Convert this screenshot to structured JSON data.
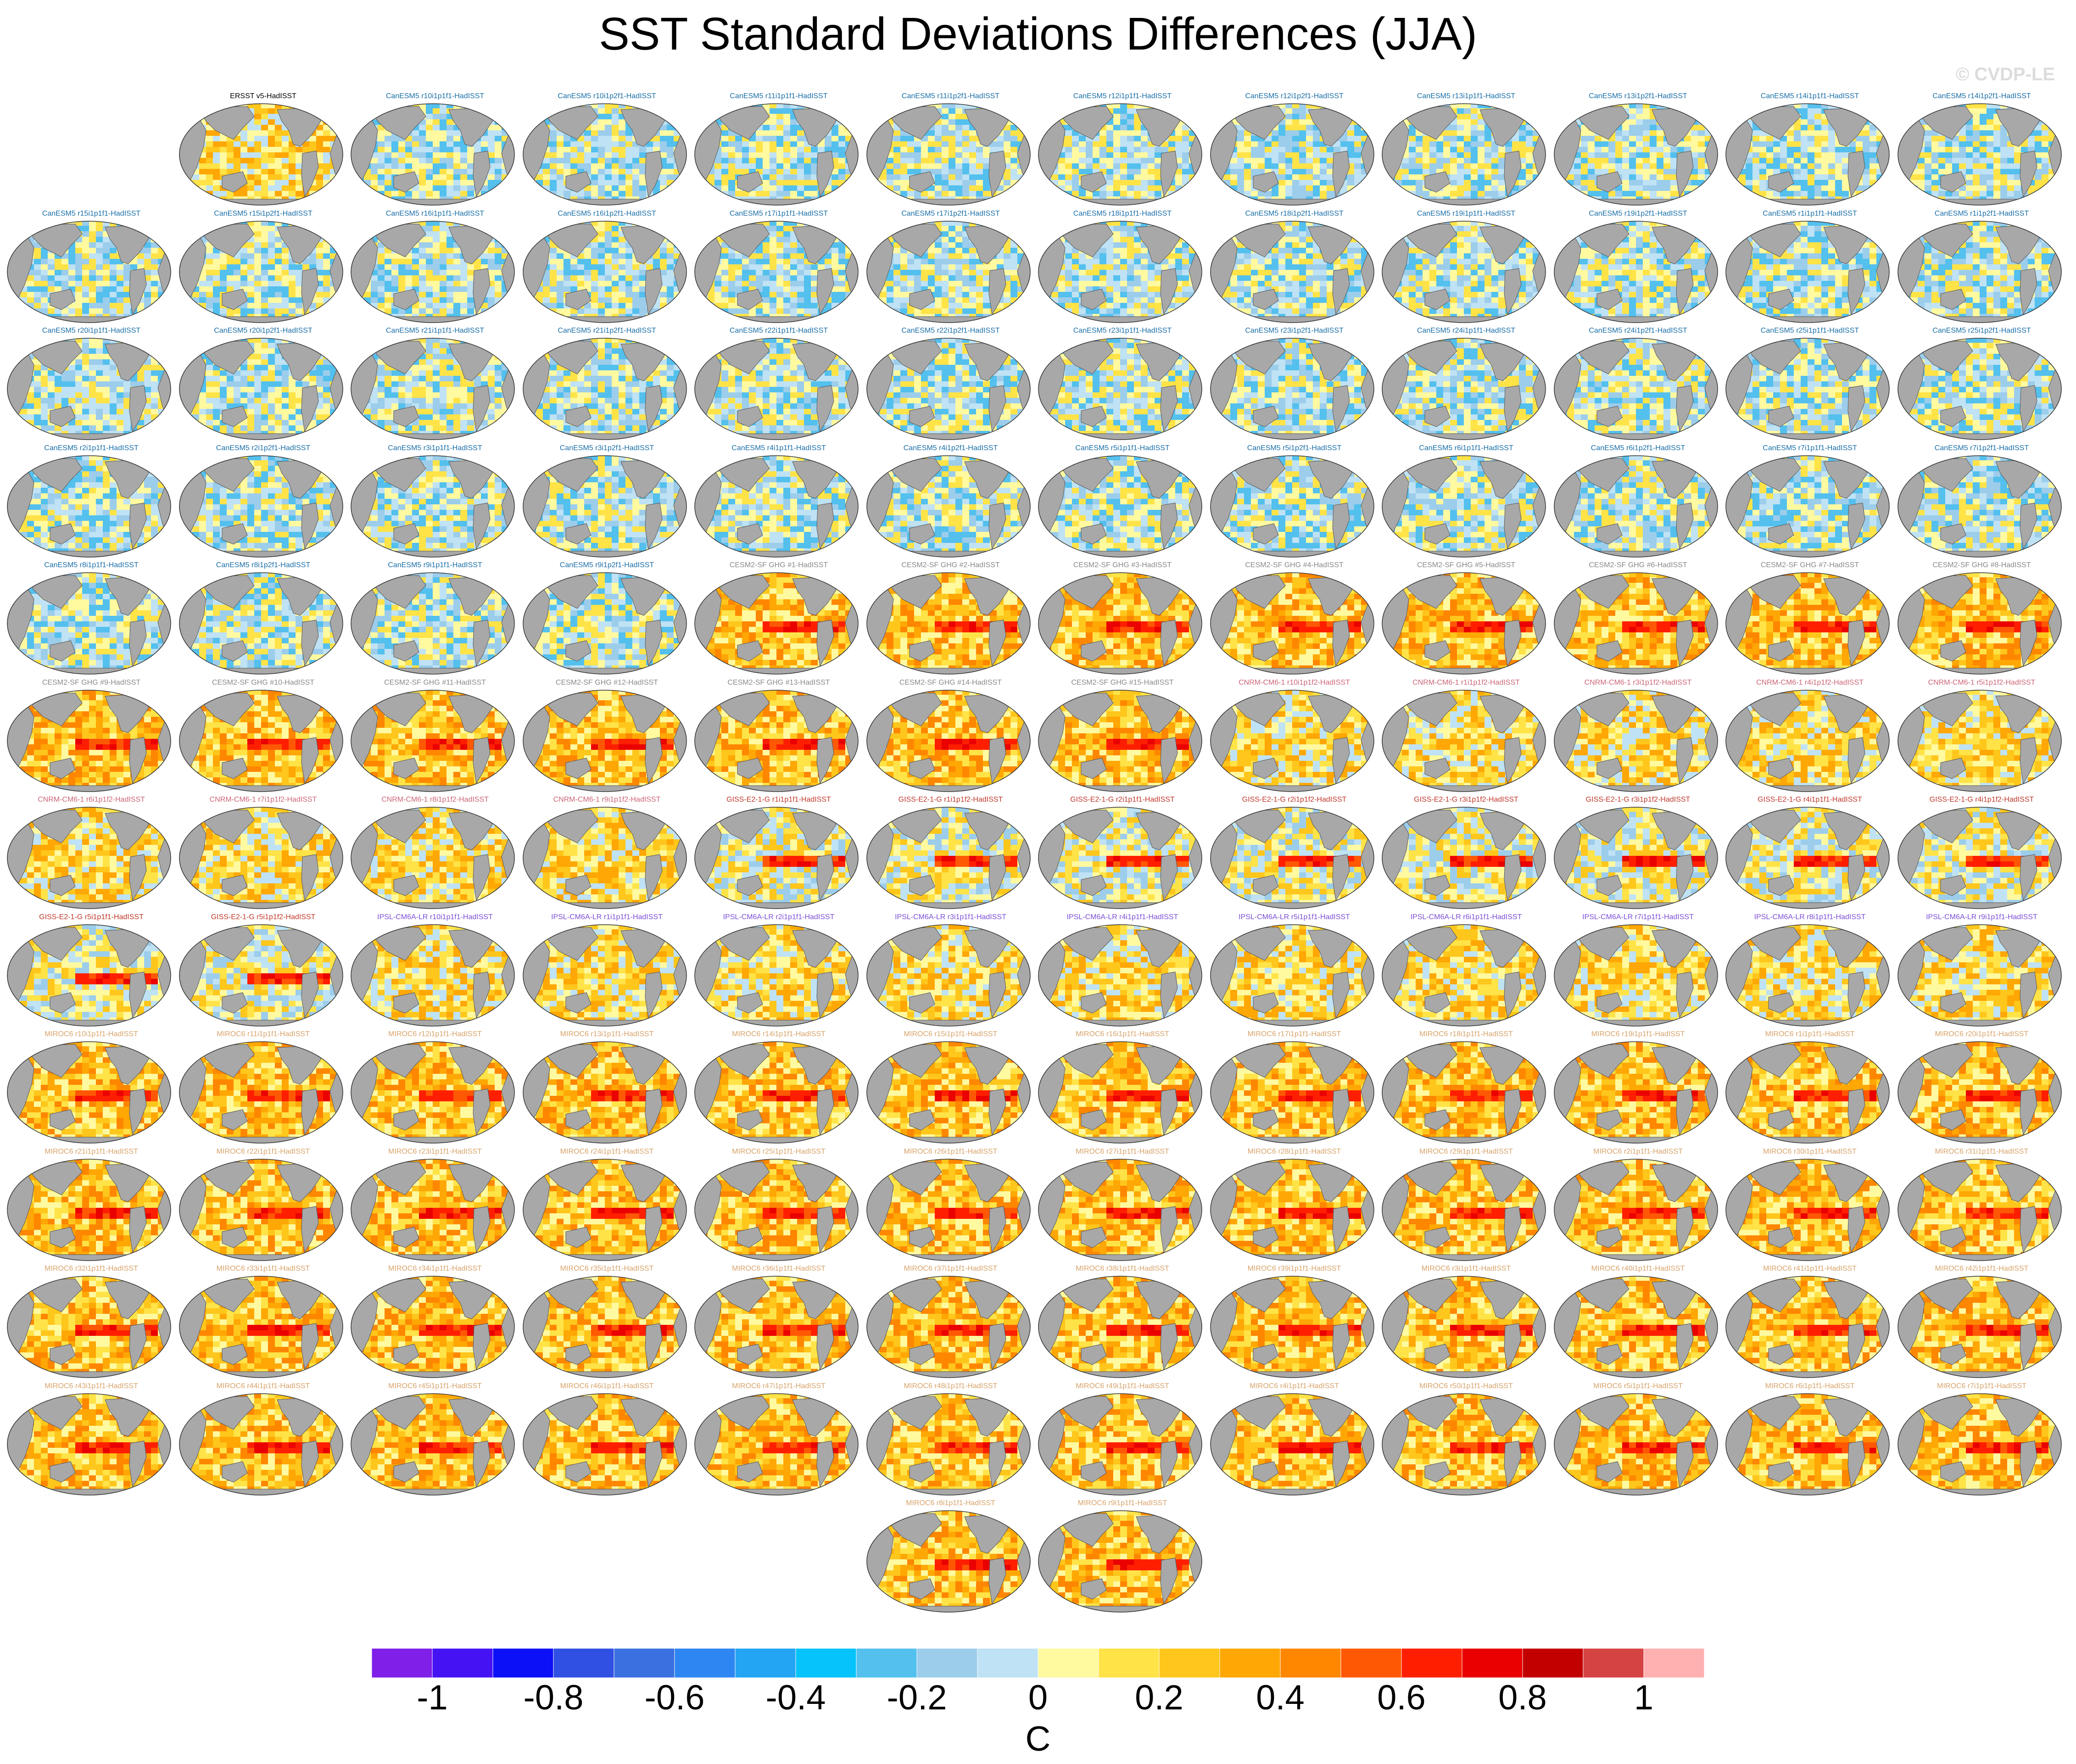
{
  "title": "SST Standard Deviations Differences (JJA)",
  "watermark": "© CVDP-LE",
  "colorbar": {
    "units": "C",
    "tick_labels": [
      "-1",
      "-0.8",
      "-0.6",
      "-0.4",
      "-0.2",
      "0",
      "0.2",
      "0.4",
      "0.6",
      "0.8",
      "1"
    ],
    "colors": [
      "#7f1fe8",
      "#4512f4",
      "#0c10f6",
      "#2f50e2",
      "#3b70e0",
      "#2d86f2",
      "#23a5f4",
      "#07c3fb",
      "#53c0ee",
      "#9ccdeb",
      "#bfe2f4",
      "#fff9a0",
      "#ffe347",
      "#ffc61c",
      "#ffa704",
      "#ff8700",
      "#ff5804",
      "#ff1f00",
      "#ea0000",
      "#c30000",
      "#d64343",
      "#ffb0b0"
    ]
  },
  "panels": [
    {
      "label": "ERSST v5-HadISST",
      "group": "obs"
    },
    {
      "label": "CanESM5 r10i1p1f1-HadISST",
      "group": "CanESM5"
    },
    {
      "label": "CanESM5 r10i1p2f1-HadISST",
      "group": "CanESM5"
    },
    {
      "label": "CanESM5 r11i1p1f1-HadISST",
      "group": "CanESM5"
    },
    {
      "label": "CanESM5 r11i1p2f1-HadISST",
      "group": "CanESM5"
    },
    {
      "label": "CanESM5 r12i1p1f1-HadISST",
      "group": "CanESM5"
    },
    {
      "label": "CanESM5 r12i1p2f1-HadISST",
      "group": "CanESM5"
    },
    {
      "label": "CanESM5 r13i1p1f1-HadISST",
      "group": "CanESM5"
    },
    {
      "label": "CanESM5 r13i1p2f1-HadISST",
      "group": "CanESM5"
    },
    {
      "label": "CanESM5 r14i1p1f1-HadISST",
      "group": "CanESM5"
    },
    {
      "label": "CanESM5 r14i1p2f1-HadISST",
      "group": "CanESM5"
    },
    {
      "label": "CanESM5 r15i1p1f1-HadISST",
      "group": "CanESM5"
    },
    {
      "label": "CanESM5 r15i1p2f1-HadISST",
      "group": "CanESM5"
    },
    {
      "label": "CanESM5 r16i1p1f1-HadISST",
      "group": "CanESM5"
    },
    {
      "label": "CanESM5 r16i1p2f1-HadISST",
      "group": "CanESM5"
    },
    {
      "label": "CanESM5 r17i1p1f1-HadISST",
      "group": "CanESM5"
    },
    {
      "label": "CanESM5 r17i1p2f1-HadISST",
      "group": "CanESM5"
    },
    {
      "label": "CanESM5 r18i1p1f1-HadISST",
      "group": "CanESM5"
    },
    {
      "label": "CanESM5 r18i1p2f1-HadISST",
      "group": "CanESM5"
    },
    {
      "label": "CanESM5 r19i1p1f1-HadISST",
      "group": "CanESM5"
    },
    {
      "label": "CanESM5 r19i1p2f1-HadISST",
      "group": "CanESM5"
    },
    {
      "label": "CanESM5 r1i1p1f1-HadISST",
      "group": "CanESM5"
    },
    {
      "label": "CanESM5 r1i1p2f1-HadISST",
      "group": "CanESM5"
    },
    {
      "label": "CanESM5 r20i1p1f1-HadISST",
      "group": "CanESM5"
    },
    {
      "label": "CanESM5 r20i1p2f1-HadISST",
      "group": "CanESM5"
    },
    {
      "label": "CanESM5 r21i1p1f1-HadISST",
      "group": "CanESM5"
    },
    {
      "label": "CanESM5 r21i1p2f1-HadISST",
      "group": "CanESM5"
    },
    {
      "label": "CanESM5 r22i1p1f1-HadISST",
      "group": "CanESM5"
    },
    {
      "label": "CanESM5 r22i1p2f1-HadISST",
      "group": "CanESM5"
    },
    {
      "label": "CanESM5 r23i1p1f1-HadISST",
      "group": "CanESM5"
    },
    {
      "label": "CanESM5 r23i1p2f1-HadISST",
      "group": "CanESM5"
    },
    {
      "label": "CanESM5 r24i1p1f1-HadISST",
      "group": "CanESM5"
    },
    {
      "label": "CanESM5 r24i1p2f1-HadISST",
      "group": "CanESM5"
    },
    {
      "label": "CanESM5 r25i1p1f1-HadISST",
      "group": "CanESM5"
    },
    {
      "label": "CanESM5 r25i1p2f1-HadISST",
      "group": "CanESM5"
    },
    {
      "label": "CanESM5 r2i1p1f1-HadISST",
      "group": "CanESM5"
    },
    {
      "label": "CanESM5 r2i1p2f1-HadISST",
      "group": "CanESM5"
    },
    {
      "label": "CanESM5 r3i1p1f1-HadISST",
      "group": "CanESM5"
    },
    {
      "label": "CanESM5 r3i1p2f1-HadISST",
      "group": "CanESM5"
    },
    {
      "label": "CanESM5 r4i1p1f1-HadISST",
      "group": "CanESM5"
    },
    {
      "label": "CanESM5 r4i1p2f1-HadISST",
      "group": "CanESM5"
    },
    {
      "label": "CanESM5 r5i1p1f1-HadISST",
      "group": "CanESM5"
    },
    {
      "label": "CanESM5 r5i1p2f1-HadISST",
      "group": "CanESM5"
    },
    {
      "label": "CanESM5 r6i1p1f1-HadISST",
      "group": "CanESM5"
    },
    {
      "label": "CanESM5 r6i1p2f1-HadISST",
      "group": "CanESM5"
    },
    {
      "label": "CanESM5 r7i1p1f1-HadISST",
      "group": "CanESM5"
    },
    {
      "label": "CanESM5 r7i1p2f1-HadISST",
      "group": "CanESM5"
    },
    {
      "label": "CanESM5 r8i1p1f1-HadISST",
      "group": "CanESM5"
    },
    {
      "label": "CanESM5 r8i1p2f1-HadISST",
      "group": "CanESM5"
    },
    {
      "label": "CanESM5 r9i1p1f1-HadISST",
      "group": "CanESM5"
    },
    {
      "label": "CanESM5 r9i1p2f1-HadISST",
      "group": "CanESM5"
    },
    {
      "label": "CESM2-SF GHG #1-HadISST",
      "group": "CESM2"
    },
    {
      "label": "CESM2-SF GHG #2-HadISST",
      "group": "CESM2"
    },
    {
      "label": "CESM2-SF GHG #3-HadISST",
      "group": "CESM2"
    },
    {
      "label": "CESM2-SF GHG #4-HadISST",
      "group": "CESM2"
    },
    {
      "label": "CESM2-SF GHG #5-HadISST",
      "group": "CESM2"
    },
    {
      "label": "CESM2-SF GHG #6-HadISST",
      "group": "CESM2"
    },
    {
      "label": "CESM2-SF GHG #7-HadISST",
      "group": "CESM2"
    },
    {
      "label": "CESM2-SF GHG #8-HadISST",
      "group": "CESM2"
    },
    {
      "label": "CESM2-SF GHG #9-HadISST",
      "group": "CESM2"
    },
    {
      "label": "CESM2-SF GHG #10-HadISST",
      "group": "CESM2"
    },
    {
      "label": "CESM2-SF GHG #11-HadISST",
      "group": "CESM2"
    },
    {
      "label": "CESM2-SF GHG #12-HadISST",
      "group": "CESM2"
    },
    {
      "label": "CESM2-SF GHG #13-HadISST",
      "group": "CESM2"
    },
    {
      "label": "CESM2-SF GHG #14-HadISST",
      "group": "CESM2"
    },
    {
      "label": "CESM2-SF GHG #15-HadISST",
      "group": "CESM2"
    },
    {
      "label": "CNRM-CM6-1 r10i1p1f2-HadISST",
      "group": "CNRM"
    },
    {
      "label": "CNRM-CM6-1 r1i1p1f2-HadISST",
      "group": "CNRM"
    },
    {
      "label": "CNRM-CM6-1 r3i1p1f2-HadISST",
      "group": "CNRM"
    },
    {
      "label": "CNRM-CM6-1 r4i1p1f2-HadISST",
      "group": "CNRM"
    },
    {
      "label": "CNRM-CM6-1 r5i1p1f2-HadISST",
      "group": "CNRM"
    },
    {
      "label": "CNRM-CM6-1 r6i1p1f2-HadISST",
      "group": "CNRM"
    },
    {
      "label": "CNRM-CM6-1 r7i1p1f2-HadISST",
      "group": "CNRM"
    },
    {
      "label": "CNRM-CM6-1 r8i1p1f2-HadISST",
      "group": "CNRM"
    },
    {
      "label": "CNRM-CM6-1 r9i1p1f2-HadISST",
      "group": "CNRM"
    },
    {
      "label": "GISS-E2-1-G r1i1p1f1-HadISST",
      "group": "GISS"
    },
    {
      "label": "GISS-E2-1-G r1i1p1f2-HadISST",
      "group": "GISS"
    },
    {
      "label": "GISS-E2-1-G r2i1p1f1-HadISST",
      "group": "GISS"
    },
    {
      "label": "GISS-E2-1-G r2i1p1f2-HadISST",
      "group": "GISS"
    },
    {
      "label": "GISS-E2-1-G r3i1p1f2-HadISST",
      "group": "GISS"
    },
    {
      "label": "GISS-E2-1-G r3i1p1f2-HadISST",
      "group": "GISS"
    },
    {
      "label": "GISS-E2-1-G r4i1p1f1-HadISST",
      "group": "GISS"
    },
    {
      "label": "GISS-E2-1-G r4i1p1f2-HadISST",
      "group": "GISS"
    },
    {
      "label": "GISS-E2-1-G r5i1p1f1-HadISST",
      "group": "GISS"
    },
    {
      "label": "GISS-E2-1-G r5i1p1f2-HadISST",
      "group": "GISS"
    },
    {
      "label": "IPSL-CM6A-LR r10i1p1f1-HadISST",
      "group": "IPSL"
    },
    {
      "label": "IPSL-CM6A-LR r1i1p1f1-HadISST",
      "group": "IPSL"
    },
    {
      "label": "IPSL-CM6A-LR r2i1p1f1-HadISST",
      "group": "IPSL"
    },
    {
      "label": "IPSL-CM6A-LR r3i1p1f1-HadISST",
      "group": "IPSL"
    },
    {
      "label": "IPSL-CM6A-LR r4i1p1f1-HadISST",
      "group": "IPSL"
    },
    {
      "label": "IPSL-CM6A-LR r5i1p1f1-HadISST",
      "group": "IPSL"
    },
    {
      "label": "IPSL-CM6A-LR r6i1p1f1-HadISST",
      "group": "IPSL"
    },
    {
      "label": "IPSL-CM6A-LR r7i1p1f1-HadISST",
      "group": "IPSL"
    },
    {
      "label": "IPSL-CM6A-LR r8i1p1f1-HadISST",
      "group": "IPSL"
    },
    {
      "label": "IPSL-CM6A-LR r9i1p1f1-HadISST",
      "group": "IPSL"
    },
    {
      "label": "MIROC6 r10i1p1f1-HadISST",
      "group": "MIROC6"
    },
    {
      "label": "MIROC6 r11i1p1f1-HadISST",
      "group": "MIROC6"
    },
    {
      "label": "MIROC6 r12i1p1f1-HadISST",
      "group": "MIROC6"
    },
    {
      "label": "MIROC6 r13i1p1f1-HadISST",
      "group": "MIROC6"
    },
    {
      "label": "MIROC6 r14i1p1f1-HadISST",
      "group": "MIROC6"
    },
    {
      "label": "MIROC6 r15i1p1f1-HadISST",
      "group": "MIROC6"
    },
    {
      "label": "MIROC6 r16i1p1f1-HadISST",
      "group": "MIROC6"
    },
    {
      "label": "MIROC6 r17i1p1f1-HadISST",
      "group": "MIROC6"
    },
    {
      "label": "MIROC6 r18i1p1f1-HadISST",
      "group": "MIROC6"
    },
    {
      "label": "MIROC6 r19i1p1f1-HadISST",
      "group": "MIROC6"
    },
    {
      "label": "MIROC6 r1i1p1f1-HadISST",
      "group": "MIROC6"
    },
    {
      "label": "MIROC6 r20i1p1f1-HadISST",
      "group": "MIROC6"
    },
    {
      "label": "MIROC6 r21i1p1f1-HadISST",
      "group": "MIROC6"
    },
    {
      "label": "MIROC6 r22i1p1f1-HadISST",
      "group": "MIROC6"
    },
    {
      "label": "MIROC6 r23i1p1f1-HadISST",
      "group": "MIROC6"
    },
    {
      "label": "MIROC6 r24i1p1f1-HadISST",
      "group": "MIROC6"
    },
    {
      "label": "MIROC6 r25i1p1f1-HadISST",
      "group": "MIROC6"
    },
    {
      "label": "MIROC6 r26i1p1f1-HadISST",
      "group": "MIROC6"
    },
    {
      "label": "MIROC6 r27i1p1f1-HadISST",
      "group": "MIROC6"
    },
    {
      "label": "MIROC6 r28i1p1f1-HadISST",
      "group": "MIROC6"
    },
    {
      "label": "MIROC6 r29i1p1f1-HadISST",
      "group": "MIROC6"
    },
    {
      "label": "MIROC6 r2i1p1f1-HadISST",
      "group": "MIROC6"
    },
    {
      "label": "MIROC6 r30i1p1f1-HadISST",
      "group": "MIROC6"
    },
    {
      "label": "MIROC6 r31i1p1f1-HadISST",
      "group": "MIROC6"
    },
    {
      "label": "MIROC6 r32i1p1f1-HadISST",
      "group": "MIROC6"
    },
    {
      "label": "MIROC6 r33i1p1f1-HadISST",
      "group": "MIROC6"
    },
    {
      "label": "MIROC6 r34i1p1f1-HadISST",
      "group": "MIROC6"
    },
    {
      "label": "MIROC6 r35i1p1f1-HadISST",
      "group": "MIROC6"
    },
    {
      "label": "MIROC6 r36i1p1f1-HadISST",
      "group": "MIROC6"
    },
    {
      "label": "MIROC6 r37i1p1f1-HadISST",
      "group": "MIROC6"
    },
    {
      "label": "MIROC6 r38i1p1f1-HadISST",
      "group": "MIROC6"
    },
    {
      "label": "MIROC6 r39i1p1f1-HadISST",
      "group": "MIROC6"
    },
    {
      "label": "MIROC6 r3i1p1f1-HadISST",
      "group": "MIROC6"
    },
    {
      "label": "MIROC6 r40i1p1f1-HadISST",
      "group": "MIROC6"
    },
    {
      "label": "MIROC6 r41i1p1f1-HadISST",
      "group": "MIROC6"
    },
    {
      "label": "MIROC6 r42i1p1f1-HadISST",
      "group": "MIROC6"
    },
    {
      "label": "MIROC6 r43i1p1f1-HadISST",
      "group": "MIROC6"
    },
    {
      "label": "MIROC6 r44i1p1f1-HadISST",
      "group": "MIROC6"
    },
    {
      "label": "MIROC6 r45i1p1f1-HadISST",
      "group": "MIROC6"
    },
    {
      "label": "MIROC6 r46i1p1f1-HadISST",
      "group": "MIROC6"
    },
    {
      "label": "MIROC6 r47i1p1f1-HadISST",
      "group": "MIROC6"
    },
    {
      "label": "MIROC6 r48i1p1f1-HadISST",
      "group": "MIROC6"
    },
    {
      "label": "MIROC6 r49i1p1f1-HadISST",
      "group": "MIROC6"
    },
    {
      "label": "MIROC6 r4i1p1f1-HadISST",
      "group": "MIROC6"
    },
    {
      "label": "MIROC6 r50i1p1f1-HadISST",
      "group": "MIROC6"
    },
    {
      "label": "MIROC6 r5i1p1f1-HadISST",
      "group": "MIROC6"
    },
    {
      "label": "MIROC6 r6i1p1f1-HadISST",
      "group": "MIROC6"
    },
    {
      "label": "MIROC6 r7i1p1f1-HadISST",
      "group": "MIROC6"
    },
    {
      "label": "MIROC6 r8i1p1f1-HadISST",
      "group": "MIROC6"
    },
    {
      "label": "MIROC6 r9i1p1f1-HadISST",
      "group": "MIROC6"
    }
  ],
  "label_colors": {
    "obs": "#000000",
    "CanESM5": "#1a6fa8",
    "CESM2": "#8a8a8a",
    "CNRM": "#cc6677",
    "GISS": "#c0392b",
    "IPSL": "#7b4fd6",
    "MIROC6": "#d8a36a"
  }
}
